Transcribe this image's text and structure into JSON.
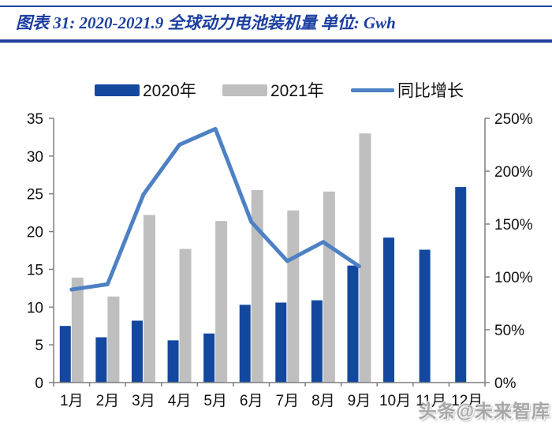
{
  "header": {
    "title": "图表 31:  2020-2021.9 全球动力电池装机量 单位:  Gwh"
  },
  "legend": [
    {
      "label": "2020年",
      "type": "bar",
      "color": "#14489E"
    },
    {
      "label": "2021年",
      "type": "bar",
      "color": "#BFBFBF"
    },
    {
      "label": "同比增长",
      "type": "line",
      "color": "#4E80C4"
    }
  ],
  "watermark": "头条@未来智库",
  "colors": {
    "bar_2020": "#14489E",
    "bar_2021": "#BFBFBF",
    "growth_line": "#4E80C4",
    "axis": "#7F7F7F",
    "title_blue": "#1C3FA0",
    "rule_blue": "#1F3F9E",
    "tick_text": "#111111"
  },
  "chart_data": {
    "type": "bar",
    "title": "2020-2021.9 全球动力电池装机量",
    "unit": "Gwh",
    "categories": [
      "1月",
      "2月",
      "3月",
      "4月",
      "5月",
      "6月",
      "7月",
      "8月",
      "9月",
      "10月",
      "11月",
      "12月"
    ],
    "series": [
      {
        "name": "2020年",
        "type": "bar",
        "axis": "left",
        "color": "#14489E",
        "values": [
          7.5,
          6.0,
          8.2,
          5.6,
          6.5,
          10.3,
          10.6,
          10.9,
          15.5,
          19.2,
          17.6,
          25.9
        ]
      },
      {
        "name": "2021年",
        "type": "bar",
        "axis": "left",
        "color": "#BFBFBF",
        "values": [
          13.9,
          11.4,
          22.2,
          17.7,
          21.4,
          25.5,
          22.8,
          25.3,
          33.0,
          null,
          null,
          null
        ]
      },
      {
        "name": "同比增长",
        "type": "line",
        "axis": "right",
        "color": "#4E80C4",
        "values": [
          88,
          93,
          178,
          225,
          240,
          152,
          115,
          133,
          110,
          null,
          null,
          null
        ]
      }
    ],
    "left_axis": {
      "min": 0,
      "max": 35,
      "step": 5,
      "ticks": [
        "0",
        "5",
        "10",
        "15",
        "20",
        "25",
        "30",
        "35"
      ]
    },
    "right_axis": {
      "min": 0,
      "max": 250,
      "step": 50,
      "ticks": [
        "0%",
        "50%",
        "100%",
        "150%",
        "200%",
        "250%"
      ]
    },
    "grid": false,
    "legend_position": "top"
  }
}
